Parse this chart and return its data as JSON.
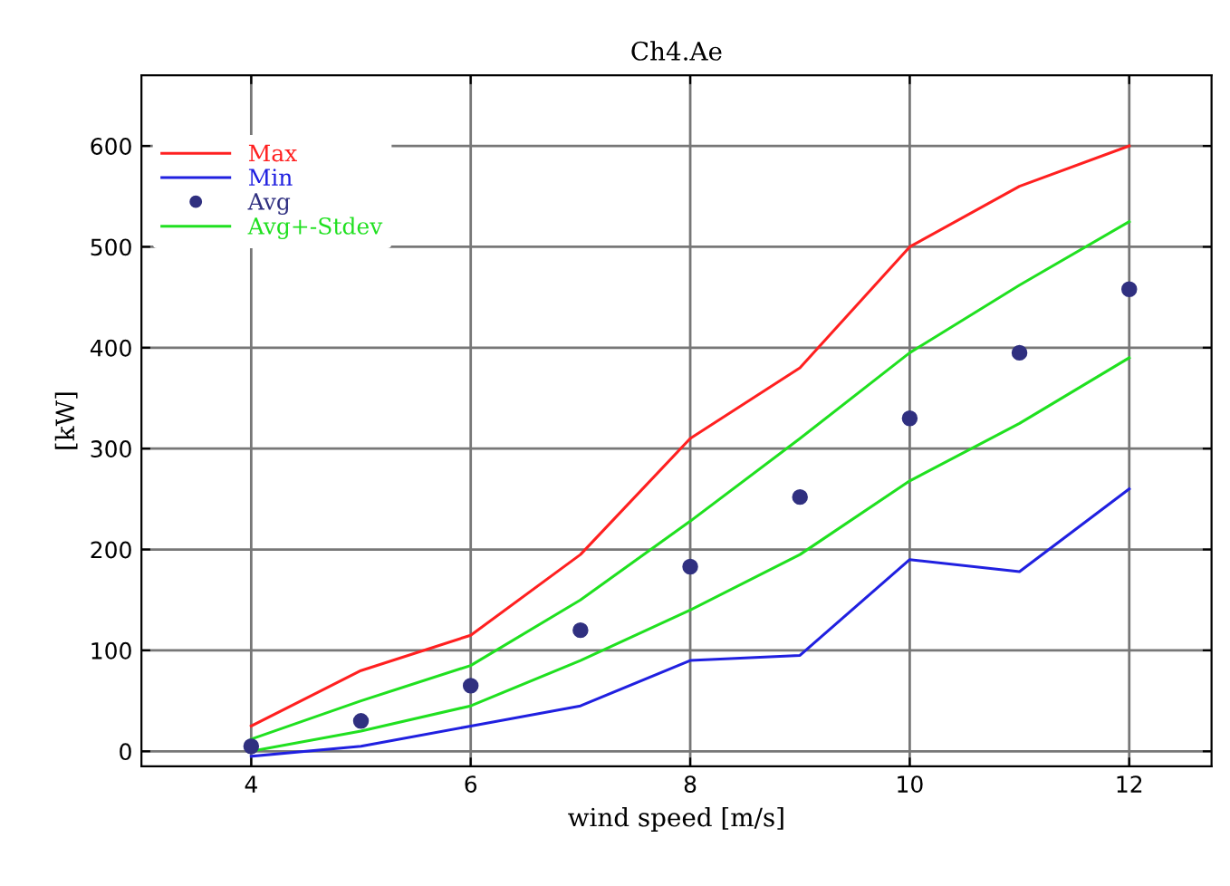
{
  "chart_data": {
    "type": "line",
    "title": "Ch4.Ae",
    "xlabel": "wind speed [m/s]",
    "ylabel": "[kW]",
    "x": [
      4,
      5,
      6,
      7,
      8,
      9,
      10,
      11,
      12
    ],
    "series": [
      {
        "name": "Max",
        "color": "#ff2020",
        "values": [
          25,
          80,
          115,
          195,
          310,
          380,
          500,
          560,
          600
        ]
      },
      {
        "name": "Min",
        "color": "#2020e0",
        "values": [
          -5,
          5,
          25,
          45,
          90,
          95,
          190,
          178,
          260
        ]
      },
      {
        "name": "Avg",
        "color": "#303080",
        "type": "scatter",
        "marker": "circle",
        "values": [
          5,
          30,
          65,
          120,
          183,
          252,
          330,
          395,
          458
        ]
      },
      {
        "name": "Avg+-Stdev",
        "color": "#20e020",
        "values": [
          12,
          50,
          85,
          150,
          228,
          310,
          395,
          462,
          525
        ]
      },
      {
        "color": "#20e020",
        "values": [
          0,
          20,
          45,
          90,
          140,
          195,
          268,
          325,
          390
        ]
      }
    ],
    "xlim": [
      3,
      12.75
    ],
    "ylim": [
      -15,
      670
    ],
    "xticks": [
      4,
      6,
      8,
      10,
      12
    ],
    "yticks": [
      0,
      100,
      200,
      300,
      400,
      500,
      600
    ],
    "grid": true,
    "legend": "top left"
  }
}
